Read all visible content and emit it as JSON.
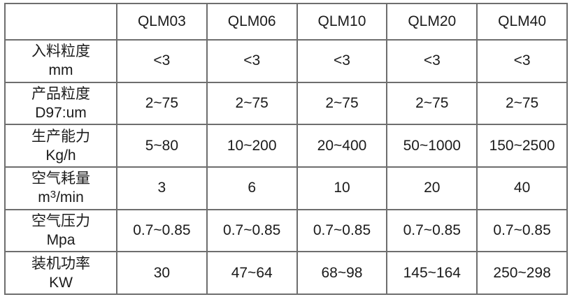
{
  "colors": {
    "border": "#6e6e6e",
    "text": "#1b1b1b",
    "background": "#ffffff"
  },
  "chart_data": {
    "type": "table",
    "title": "",
    "corner_label": "",
    "columns": [
      "QLM03",
      "QLM06",
      "QLM10",
      "QLM20",
      "QLM40"
    ],
    "rows": [
      {
        "label": "入料粒度",
        "unit": "mm",
        "values": [
          "<3",
          "<3",
          "<3",
          "<3",
          "<3"
        ]
      },
      {
        "label": "产品粒度",
        "unit": "D97:um",
        "values": [
          "2~75",
          "2~75",
          "2~75",
          "2~75",
          "2~75"
        ]
      },
      {
        "label": "生产能力",
        "unit": "Kg/h",
        "values": [
          "5~80",
          "10~200",
          "20~400",
          "50~1000",
          "150~2500"
        ]
      },
      {
        "label": "空气耗量",
        "unit": "m3/min",
        "unit_parts": {
          "pre": "m",
          "sup": "3",
          "post": "/min"
        },
        "values": [
          "3",
          "6",
          "10",
          "20",
          "40"
        ]
      },
      {
        "label": "空气压力",
        "unit": "Mpa",
        "values": [
          "0.7~0.85",
          "0.7~0.85",
          "0.7~0.85",
          "0.7~0.85",
          "0.7~0.85"
        ]
      },
      {
        "label": "装机功率",
        "unit": "KW",
        "values": [
          "30",
          "47~64",
          "68~98",
          "145~164",
          "250~298"
        ]
      }
    ]
  }
}
